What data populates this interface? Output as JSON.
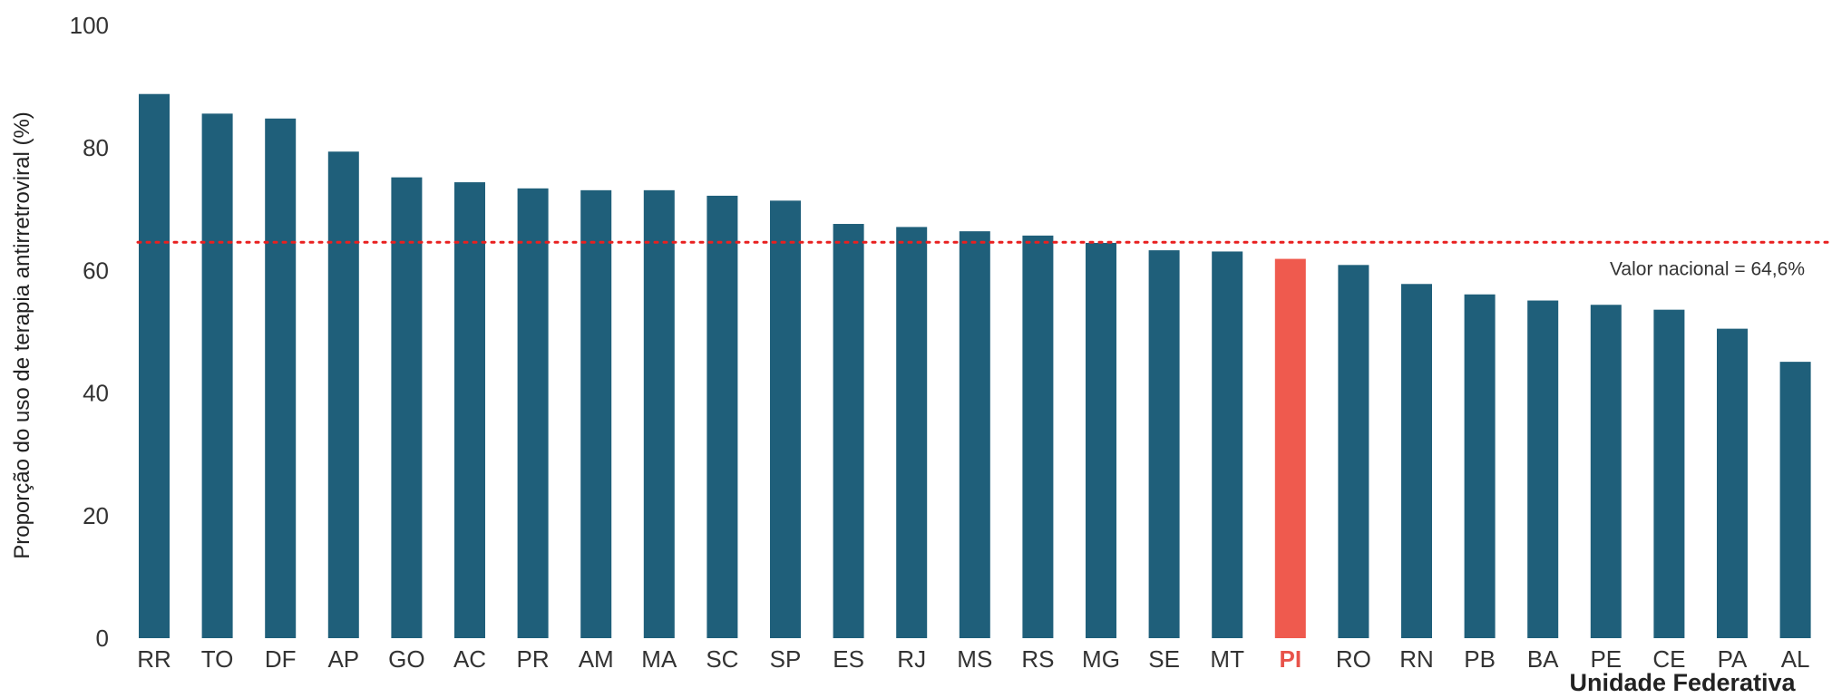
{
  "chart_data": {
    "type": "bar",
    "title": "",
    "xlabel": "Unidade Federativa",
    "ylabel": "Proporção do uso de terapia antirretroviral (%)",
    "ylim": [
      0,
      100
    ],
    "yticks": [
      "0",
      "20",
      "40",
      "60",
      "80",
      "100"
    ],
    "grid": false,
    "categories": [
      "RR",
      "TO",
      "DF",
      "AP",
      "GO",
      "AC",
      "PR",
      "AM",
      "MA",
      "SC",
      "SP",
      "ES",
      "RJ",
      "MS",
      "RS",
      "MG",
      "SE",
      "MT",
      "PI",
      "RO",
      "RN",
      "PB",
      "BA",
      "PE",
      "CE",
      "PA",
      "AL"
    ],
    "values": [
      88.8,
      85.6,
      84.8,
      79.4,
      75.2,
      74.4,
      73.4,
      73.1,
      73.1,
      72.2,
      71.4,
      67.6,
      67.1,
      66.4,
      65.7,
      64.5,
      63.3,
      63.1,
      61.9,
      60.9,
      57.8,
      56.1,
      55.1,
      54.4,
      53.6,
      50.5,
      45.1
    ],
    "highlight": "PI",
    "reference_line": {
      "value": 64.6,
      "label": "Valor nacional = 64,6%"
    },
    "colors": {
      "bar": "#1f5f7a",
      "highlight": "#ef5a4e",
      "reference": "#e82020",
      "highlight_label": "#e8534a"
    }
  }
}
